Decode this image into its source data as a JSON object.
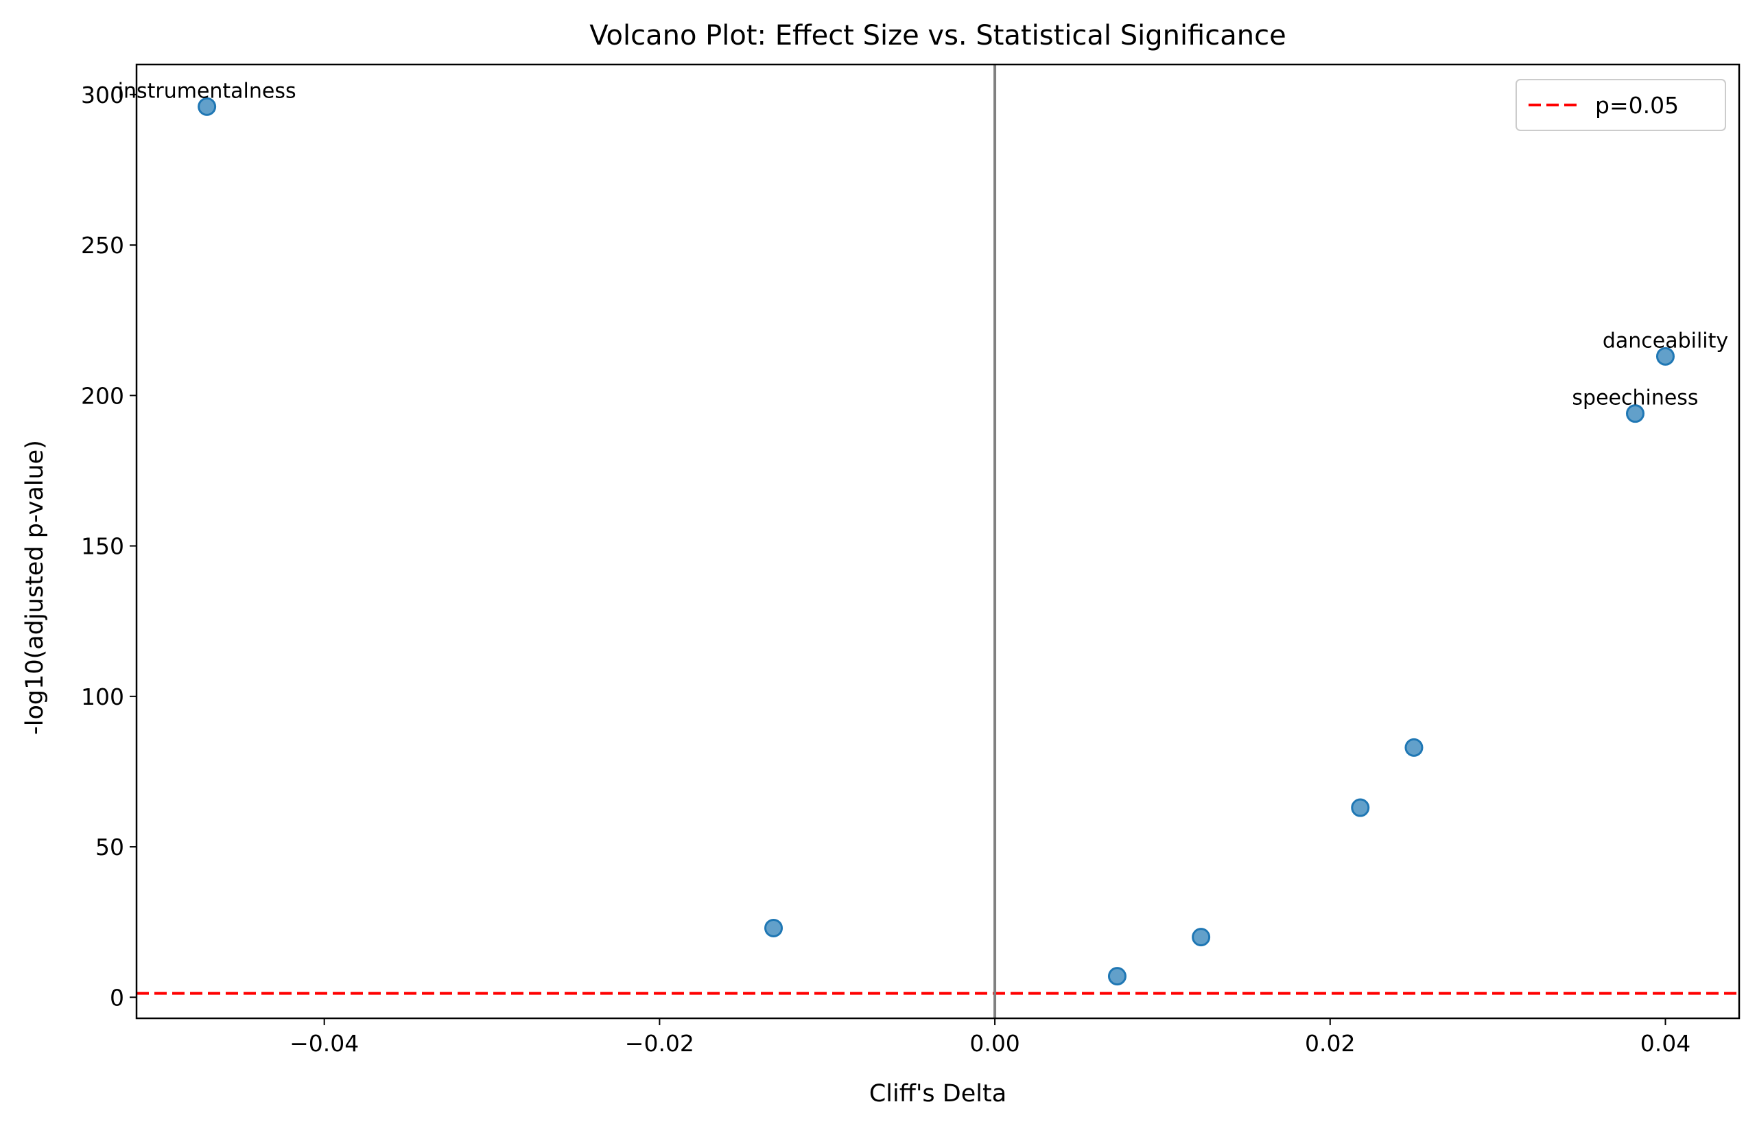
{
  "chart_data": {
    "type": "scatter",
    "title": "Volcano Plot: Effect Size vs. Statistical Significance",
    "xlabel": "Cliff's Delta",
    "ylabel": "-log10(adjusted p-value)",
    "xlim": [
      -0.0512,
      0.0444
    ],
    "ylim": [
      -7,
      310
    ],
    "xticks": [
      -0.04,
      -0.02,
      0.0,
      0.02,
      0.04
    ],
    "xtick_labels": [
      "−0.04",
      "−0.02",
      "0.00",
      "0.02",
      "0.04"
    ],
    "yticks": [
      0,
      50,
      100,
      150,
      200,
      250,
      300
    ],
    "ytick_labels": [
      "0",
      "50",
      "100",
      "150",
      "200",
      "250",
      "300"
    ],
    "grid": false,
    "point_color": "#1f77b4",
    "points": [
      {
        "x": -0.047,
        "y": 296,
        "label": "instrumentalness"
      },
      {
        "x": -0.0132,
        "y": 23,
        "label": ""
      },
      {
        "x": 0.0073,
        "y": 7,
        "label": ""
      },
      {
        "x": 0.0123,
        "y": 20,
        "label": ""
      },
      {
        "x": 0.0218,
        "y": 63,
        "label": ""
      },
      {
        "x": 0.025,
        "y": 83,
        "label": ""
      },
      {
        "x": 0.0382,
        "y": 194,
        "label": "speechiness"
      },
      {
        "x": 0.04,
        "y": 213,
        "label": "danceability"
      }
    ],
    "reference_lines": [
      {
        "orientation": "horizontal",
        "y": 1.3,
        "color": "#ff0000",
        "style": "dashed",
        "legend": "p=0.05"
      },
      {
        "orientation": "vertical",
        "x": 0.0,
        "color": "#808080",
        "style": "solid"
      }
    ],
    "legend": {
      "position": "top-right",
      "entries": [
        "p=0.05"
      ]
    }
  }
}
